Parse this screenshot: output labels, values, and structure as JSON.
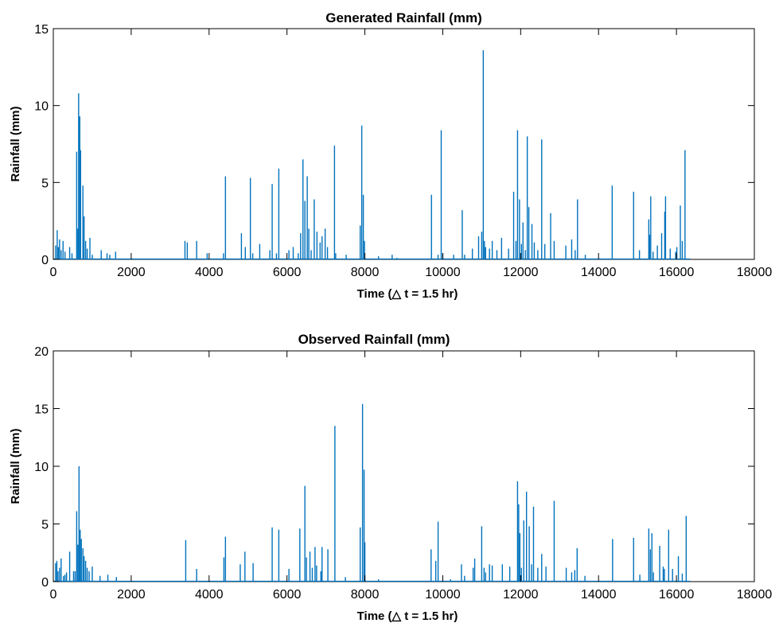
{
  "chart_data": [
    {
      "type": "bar",
      "title": "Generated Rainfall (mm)",
      "xlabel": "Time (△ t = 1.5 hr)",
      "ylabel": "Rainfall (mm)",
      "xlim": [
        0,
        18000
      ],
      "ylim": [
        0,
        15
      ],
      "xticks": [
        0,
        2000,
        4000,
        6000,
        8000,
        10000,
        12000,
        14000,
        16000,
        18000
      ],
      "yticks": [
        0,
        5,
        10,
        15
      ],
      "grid": false,
      "color": "#0072BD",
      "x": [
        60,
        100,
        130,
        160,
        200,
        250,
        300,
        420,
        480,
        600,
        630,
        650,
        680,
        700,
        760,
        790,
        830,
        870,
        940,
        1000,
        1230,
        1380,
        1450,
        1600,
        3380,
        3440,
        3680,
        3950,
        4370,
        4420,
        4830,
        4930,
        5060,
        5120,
        5300,
        5560,
        5620,
        5730,
        5790,
        6050,
        6160,
        6290,
        6350,
        6410,
        6460,
        6520,
        6560,
        6620,
        6700,
        6770,
        6850,
        6900,
        6980,
        7040,
        7220,
        7250,
        7520,
        7880,
        7920,
        7960,
        7990,
        8350,
        8700,
        8820,
        9710,
        9880,
        9960,
        10000,
        10280,
        10500,
        10560,
        10760,
        10920,
        11000,
        11040,
        11070,
        11100,
        11200,
        11270,
        11390,
        11510,
        11690,
        11820,
        11880,
        11920,
        11970,
        12020,
        12060,
        12120,
        12170,
        12210,
        12290,
        12350,
        12440,
        12540,
        12620,
        12770,
        12860,
        13160,
        13310,
        13400,
        13460,
        13660,
        14350,
        14900,
        15050,
        15290,
        15310,
        15340,
        15400,
        15510,
        15620,
        15700,
        15720,
        15840,
        15980,
        16010,
        16100,
        16150,
        16220
      ],
      "y": [
        0.9,
        1.9,
        0.8,
        1.3,
        0.6,
        1.2,
        0.5,
        0.8,
        0.4,
        7.0,
        2.0,
        10.8,
        9.3,
        7.1,
        4.8,
        2.8,
        1.2,
        0.7,
        1.4,
        0.3,
        0.6,
        0.4,
        0.3,
        0.5,
        1.2,
        1.1,
        1.2,
        0.4,
        0.4,
        5.4,
        1.7,
        0.8,
        5.3,
        0.4,
        1.0,
        0.6,
        4.9,
        0.4,
        5.9,
        0.6,
        0.8,
        0.4,
        1.7,
        6.5,
        3.8,
        5.4,
        2.0,
        0.6,
        3.9,
        1.8,
        1.1,
        1.5,
        2.0,
        0.8,
        7.4,
        0.4,
        0.3,
        2.2,
        8.7,
        4.2,
        1.2,
        0.2,
        0.3,
        0.1,
        4.2,
        0.3,
        8.4,
        0.4,
        0.3,
        3.2,
        0.3,
        0.7,
        1.5,
        1.8,
        13.6,
        1.2,
        0.8,
        0.7,
        1.2,
        0.6,
        1.4,
        0.7,
        4.4,
        1.2,
        8.4,
        3.9,
        1.0,
        2.4,
        0.6,
        8.0,
        3.4,
        2.3,
        1.1,
        0.6,
        7.8,
        1.0,
        3.0,
        1.2,
        0.9,
        1.3,
        0.6,
        3.9,
        0.3,
        4.8,
        4.4,
        0.6,
        2.6,
        1.6,
        4.1,
        0.5,
        0.9,
        1.7,
        3.1,
        4.1,
        0.7,
        0.5,
        0.8,
        3.5,
        1.2,
        7.1
      ]
    },
    {
      "type": "bar",
      "title": "Observed Rainfall (mm)",
      "xlabel": "Time (△ t = 1.5 hr)",
      "ylabel": "Rainfall (mm)",
      "xlim": [
        0,
        18000
      ],
      "ylim": [
        0,
        20
      ],
      "xticks": [
        0,
        2000,
        4000,
        6000,
        8000,
        10000,
        12000,
        14000,
        16000,
        18000
      ],
      "yticks": [
        0,
        5,
        10,
        15,
        20
      ],
      "grid": false,
      "color": "#0072BD",
      "x": [
        60,
        90,
        120,
        160,
        200,
        260,
        300,
        340,
        420,
        520,
        560,
        600,
        630,
        660,
        690,
        720,
        760,
        790,
        830,
        870,
        920,
        1000,
        1200,
        1400,
        1620,
        3400,
        3680,
        4380,
        4420,
        4800,
        4920,
        5130,
        5620,
        5790,
        6050,
        6330,
        6460,
        6500,
        6590,
        6650,
        6720,
        6760,
        6870,
        6900,
        7050,
        7230,
        7500,
        7880,
        7940,
        7980,
        8000,
        8350,
        9700,
        9820,
        9880,
        10200,
        10480,
        10560,
        10780,
        10820,
        11000,
        11060,
        11100,
        11200,
        11270,
        11530,
        11720,
        11920,
        11950,
        11980,
        12020,
        12080,
        12150,
        12220,
        12280,
        12330,
        12440,
        12540,
        12650,
        12860,
        13170,
        13310,
        13390,
        13450,
        13650,
        14360,
        14900,
        15060,
        15290,
        15330,
        15370,
        15410,
        15570,
        15660,
        15690,
        15800,
        15900,
        16050,
        16150,
        16250
      ],
      "y": [
        1.6,
        1.8,
        0.9,
        1.2,
        2.0,
        0.5,
        0.6,
        0.8,
        2.6,
        0.9,
        0.9,
        6.1,
        3.2,
        10.0,
        4.5,
        3.7,
        2.9,
        2.2,
        1.8,
        1.2,
        0.9,
        1.3,
        0.5,
        0.6,
        0.4,
        3.6,
        1.1,
        2.1,
        3.9,
        1.5,
        2.6,
        1.6,
        4.7,
        4.5,
        1.1,
        4.6,
        8.3,
        2.1,
        2.6,
        1.2,
        3.0,
        1.4,
        0.9,
        3.0,
        2.8,
        13.5,
        0.4,
        4.7,
        15.4,
        9.7,
        3.4,
        0.2,
        2.8,
        1.8,
        5.2,
        0.2,
        1.5,
        0.5,
        1.2,
        2.0,
        4.8,
        1.2,
        0.8,
        1.5,
        1.4,
        1.5,
        1.3,
        8.7,
        6.7,
        4.2,
        1.2,
        5.3,
        7.8,
        4.8,
        1.5,
        6.5,
        1.2,
        2.4,
        1.3,
        7.0,
        1.2,
        0.8,
        1.0,
        2.9,
        0.5,
        3.7,
        3.8,
        0.6,
        4.6,
        2.8,
        4.2,
        0.8,
        3.1,
        1.3,
        1.1,
        4.5,
        1.1,
        2.2,
        0.7,
        5.7
      ]
    }
  ]
}
